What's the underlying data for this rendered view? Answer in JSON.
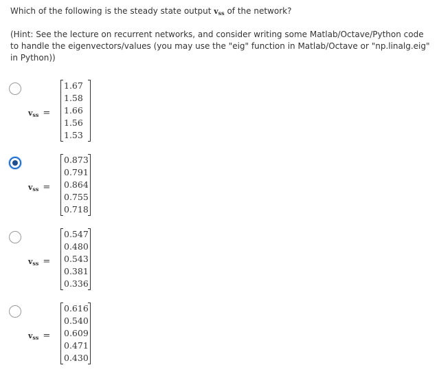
{
  "question": {
    "text_before": "Which of the following is the steady state output ",
    "symbol": "v",
    "subscript": "ss",
    "text_after": " of the network?"
  },
  "hint": "(Hint: See the lecture on recurrent networks, and consider writing some Matlab/Octave/Python code to handle the eigenvectors/values (you may use the \"eig\" function in Matlab/Octave or \"np.linalg.eig\" in Python))",
  "colors": {
    "selected_radio": "#1f6fd0",
    "text": "#333333"
  },
  "options": [
    {
      "label_symbol": "v",
      "label_subscript": "ss",
      "equals": "=",
      "selected": false,
      "values": [
        "1.67",
        "1.58",
        "1.66",
        "1.56",
        "1.53"
      ]
    },
    {
      "label_symbol": "v",
      "label_subscript": "ss",
      "equals": "=",
      "selected": true,
      "values": [
        "0.873",
        "0.791",
        "0.864",
        "0.755",
        "0.718"
      ]
    },
    {
      "label_symbol": "v",
      "label_subscript": "ss",
      "equals": "=",
      "selected": false,
      "values": [
        "0.547",
        "0.480",
        "0.543",
        "0.381",
        "0.336"
      ]
    },
    {
      "label_symbol": "v",
      "label_subscript": "ss",
      "equals": "=",
      "selected": false,
      "values": [
        "0.616",
        "0.540",
        "0.609",
        "0.471",
        "0.430"
      ]
    }
  ]
}
